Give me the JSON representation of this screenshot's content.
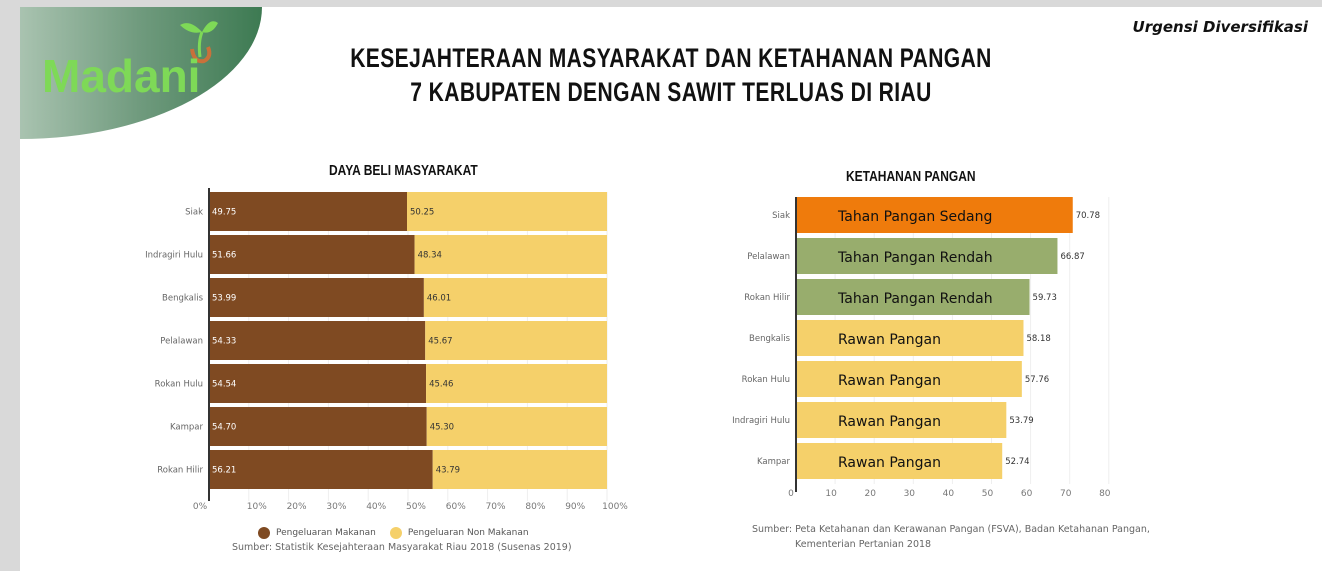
{
  "header": {
    "corner_label": "Urgensi Diversifikasi",
    "title_line1": "KESEJAHTERAAN MASYARAKAT DAN KETAHANAN PANGAN",
    "title_line2": "7 KABUPATEN DENGAN SAWIT TERLUAS DI RIAU",
    "logo_text": "Madani"
  },
  "colors": {
    "food": "#7f4a22",
    "nonfood": "#f5d06a",
    "sedang": "#ef7b0c",
    "rendah": "#98ad6d",
    "rawan": "#f5d06a"
  },
  "chart_data": [
    {
      "type": "bar",
      "stacked": true,
      "orientation": "horizontal",
      "title": "DAYA BELI MASYARAKAT",
      "categories": [
        "Siak",
        "Indragiri Hulu",
        "Bengkalis",
        "Pelalawan",
        "Rokan Hulu",
        "Kampar",
        "Rokan Hilir"
      ],
      "series": [
        {
          "name": "Pengeluaran Makanan",
          "values": [
            49.75,
            51.66,
            53.99,
            54.33,
            54.54,
            54.7,
            56.21
          ]
        },
        {
          "name": "Pengeluaran Non Makanan",
          "values": [
            50.25,
            48.34,
            46.01,
            45.67,
            45.46,
            45.3,
            43.79
          ]
        }
      ],
      "value_labels": [
        [
          "49.75",
          "51.66",
          "53.99",
          "54.33",
          "54.54",
          "54.70",
          "56.21"
        ],
        [
          "50.25",
          "48.34",
          "46.01",
          "45.67",
          "45.46",
          "45.30",
          "43.79"
        ]
      ],
      "xlim": [
        0,
        100
      ],
      "xticks": [
        "0%",
        "10%",
        "20%",
        "30%",
        "40%",
        "50%",
        "60%",
        "70%",
        "80%",
        "90%",
        "100%"
      ],
      "legend": "bottom",
      "source": "Sumber: Statistik Kesejahteraan Masyarakat Riau 2018 (Susenas 2019)"
    },
    {
      "type": "bar",
      "orientation": "horizontal",
      "title": "KETAHANAN PANGAN",
      "categories": [
        "Siak",
        "Pelalawan",
        "Rokan Hilir",
        "Bengkalis",
        "Rokan Hulu",
        "Indragiri Hulu",
        "Kampar"
      ],
      "values": [
        70.78,
        66.87,
        59.73,
        58.18,
        57.76,
        53.79,
        52.74
      ],
      "value_labels": [
        "70.78",
        "66.87",
        "59.73",
        "58.18",
        "57.76",
        "53.79",
        "52.74"
      ],
      "bar_labels": [
        "Tahan Pangan Sedang",
        "Tahan Pangan Rendah",
        "Tahan Pangan Rendah",
        "Rawan Pangan",
        "Rawan Pangan",
        "Rawan Pangan",
        "Rawan Pangan"
      ],
      "bar_classes": [
        "sedang",
        "rendah",
        "rendah",
        "rawan",
        "rawan",
        "rawan",
        "rawan"
      ],
      "xlim": [
        0,
        80
      ],
      "xticks": [
        "0",
        "10",
        "20",
        "30",
        "40",
        "50",
        "60",
        "70",
        "80"
      ],
      "source_line1": "Sumber: Peta Ketahanan dan Kerawanan Pangan (FSVA), Badan Ketahanan Pangan,",
      "source_line2": "Kementerian Pertanian 2018"
    }
  ]
}
